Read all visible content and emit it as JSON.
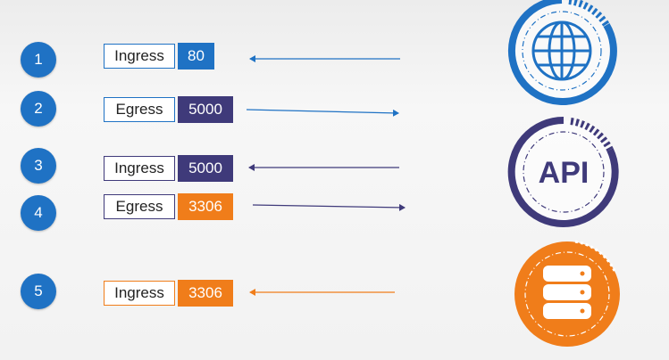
{
  "colors": {
    "web": "#1f72c4",
    "api": "#3f3a7a",
    "db": "#f07d1a",
    "step": "#1f72c4"
  },
  "rules": [
    {
      "step": "1",
      "direction": "Ingress",
      "port": "80"
    },
    {
      "step": "2",
      "direction": "Egress",
      "port": "5000"
    },
    {
      "step": "3",
      "direction": "Ingress",
      "port": "5000"
    },
    {
      "step": "4",
      "direction": "Egress",
      "port": "3306"
    },
    {
      "step": "5",
      "direction": "Ingress",
      "port": "3306"
    }
  ],
  "nodes": {
    "web": {
      "icon": "globe-icon"
    },
    "api": {
      "label": "API"
    },
    "db": {
      "icon": "database-icon"
    }
  }
}
